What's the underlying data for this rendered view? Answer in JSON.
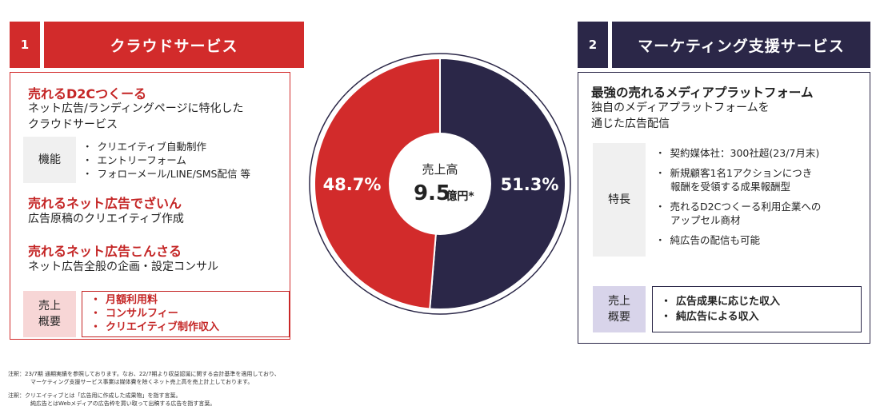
{
  "left": {
    "number": "1",
    "title": "クラウドサービス",
    "products": [
      {
        "name": "売れるD2Cつくーる",
        "desc": [
          "ネット広告/ランディングページに特化した",
          "クラウドサービス"
        ]
      },
      {
        "name": "売れるネット広告でざいん",
        "desc": [
          "広告原稿のクリエイティブ作成"
        ]
      },
      {
        "name": "売れるネット広告こんさる",
        "desc": [
          "ネット広告全般の企画・設定コンサル"
        ]
      }
    ],
    "features_label": "機能",
    "features": [
      "クリエイティブ自動制作",
      "エントリーフォーム",
      "フォローメール/LINE/SMS配信 等"
    ],
    "revenue_label": [
      "売上",
      "概要"
    ],
    "revenue": [
      "月額利用料",
      "コンサルフィー",
      "クリエイティブ制作収入"
    ]
  },
  "right": {
    "number": "2",
    "title": "マーケティング支援サービス",
    "product": "最強の売れるメディアプラットフォーム",
    "desc": [
      "独自のメディアプラットフォームを",
      "通じた広告配信"
    ],
    "features_label": "特長",
    "features": [
      [
        "契約媒体社：300社超(23/7月末)"
      ],
      [
        "新規顧客1名1アクションにつき",
        "報酬を受領する成果報酬型"
      ],
      [
        "売れるD2Cつくーる利用企業への",
        "アップセル商材"
      ],
      [
        "純広告の配信も可能"
      ]
    ],
    "revenue_label": [
      "売上",
      "概要"
    ],
    "revenue": [
      "広告成果に応じた収入",
      "純広告による収入"
    ]
  },
  "chart_data": {
    "type": "pie",
    "title": "売上高",
    "total_value": "9.5",
    "total_unit": "億円*",
    "slices": [
      {
        "name": "マーケティング支援サービス",
        "value": 51.3,
        "label": "51.3%",
        "color": "#2b2748"
      },
      {
        "name": "クラウドサービス",
        "value": 48.7,
        "label": "48.7%",
        "color": "#d22b2b"
      }
    ]
  },
  "notes": [
    [
      "注釈：23/7期 通期実績を参照しております。なお、22/7期より収益認識に関する会計基準を適用しており、",
      "マーケティング支援サービス事業は媒体費を除くネット売上高を売上計上しております。"
    ],
    [
      "注釈：クリエイティブとは「広告用に作成した成果物」を指す言葉。",
      "純広告とはWebメディアの広告枠を買い取って出稿する広告を指す言葉。"
    ]
  ]
}
